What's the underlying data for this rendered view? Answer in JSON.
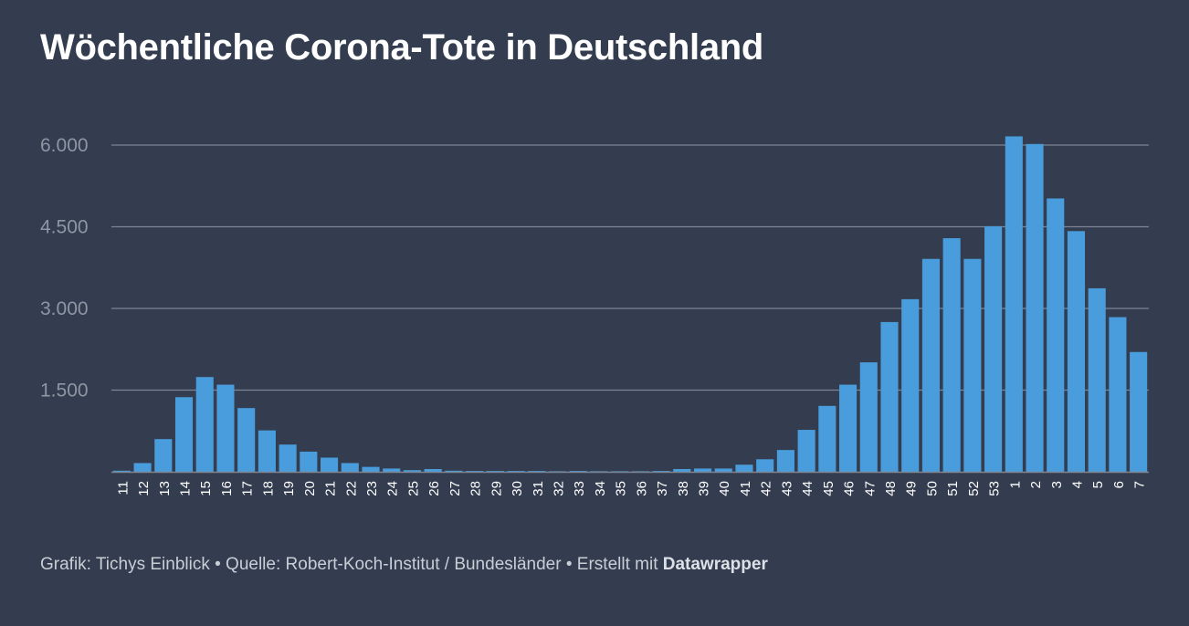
{
  "title": "Wöchentliche Corona-Tote in Deutschland",
  "footer": {
    "credit": "Grafik: Tichys Einblick",
    "separator": " • ",
    "source": "Quelle: Robert-Koch-Institut / Bundesländer",
    "made_with": "Erstellt mit ",
    "brand": "Datawrapper"
  },
  "colors": {
    "background": "#333d4f",
    "bar": "#4a9ddc",
    "grid": "#7d8594",
    "axis_text": "#8e96a3",
    "tick_text": "#ffffff"
  },
  "chart_data": {
    "type": "bar",
    "title": "Wöchentliche Corona-Tote in Deutschland",
    "xlabel": "",
    "ylabel": "",
    "ylim": [
      0,
      6300
    ],
    "yticks": [
      {
        "value": 1500,
        "label": "1.500"
      },
      {
        "value": 3000,
        "label": "3.000"
      },
      {
        "value": 4500,
        "label": "4.500"
      },
      {
        "value": 6000,
        "label": "6.000"
      }
    ],
    "grid": true,
    "categories": [
      "11",
      "12",
      "13",
      "14",
      "15",
      "16",
      "17",
      "18",
      "19",
      "20",
      "21",
      "22",
      "23",
      "24",
      "25",
      "26",
      "27",
      "28",
      "29",
      "30",
      "31",
      "32",
      "33",
      "34",
      "35",
      "36",
      "37",
      "38",
      "39",
      "40",
      "41",
      "42",
      "43",
      "44",
      "45",
      "46",
      "47",
      "48",
      "49",
      "50",
      "51",
      "52",
      "53",
      "1",
      "2",
      "3",
      "4",
      "5",
      "6",
      "7"
    ],
    "values": [
      20,
      160,
      600,
      1370,
      1740,
      1600,
      1170,
      760,
      500,
      370,
      260,
      160,
      90,
      60,
      30,
      50,
      20,
      15,
      15,
      15,
      15,
      10,
      15,
      10,
      10,
      10,
      15,
      50,
      60,
      60,
      130,
      230,
      400,
      770,
      1210,
      1600,
      2010,
      2750,
      3170,
      3910,
      4290,
      3910,
      4510,
      6160,
      6020,
      5020,
      4420,
      3370,
      2840,
      2200
    ]
  }
}
